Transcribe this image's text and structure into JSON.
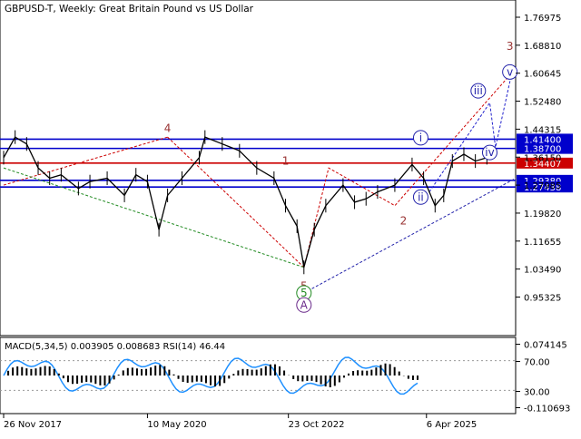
{
  "header": {
    "title": "GBPUSD-T, Weekly:  Great Britain Pound vs US Dollar"
  },
  "chart_data": [
    {
      "type": "line",
      "title": "GBPUSD-T, Weekly:  Great Britain Pound vs US Dollar",
      "ylim": [
        0.9,
        1.82
      ],
      "grid": false,
      "price_ticks": [
        "1.76975",
        "1.68810",
        "1.60645",
        "1.52480",
        "1.44315",
        "1.36150",
        "1.27985",
        "1.19820",
        "1.11655",
        "1.03490",
        "0.95325"
      ],
      "date_ticks": [
        "26 Nov 2017",
        "10 May 2020",
        "23 Oct 2022",
        "6 Apr 2025"
      ],
      "levels": [
        {
          "value": 1.414,
          "label": "1.41400",
          "color": "#0000cc"
        },
        {
          "value": 1.387,
          "label": "1.38700",
          "color": "#0000cc"
        },
        {
          "value": 1.34407,
          "label": "1.34407",
          "color": "#cc0000"
        },
        {
          "value": 1.2938,
          "label": "1.29380",
          "color": "#0000cc"
        },
        {
          "value": 1.27438,
          "label": "1.27438",
          "color": "#0000cc"
        }
      ],
      "series": [
        {
          "x": [
            2017.5,
            2017.7,
            2017.9,
            2018.1,
            2018.3,
            2018.5,
            2018.8,
            2019.0,
            2019.3,
            2019.6,
            2019.8,
            2020.0,
            2020.2,
            2020.35,
            2020.6,
            2020.9,
            2021.0,
            2021.3,
            2021.6,
            2021.9,
            2022.2,
            2022.4,
            2022.6,
            2022.72,
            2022.9,
            2023.1,
            2023.4,
            2023.6,
            2023.8,
            2024.0,
            2024.3,
            2024.6,
            2024.8,
            2025.0,
            2025.15,
            2025.3,
            2025.5,
            2025.7,
            2025.9
          ],
          "values": [
            1.36,
            1.42,
            1.4,
            1.33,
            1.3,
            1.31,
            1.27,
            1.29,
            1.3,
            1.25,
            1.31,
            1.29,
            1.15,
            1.25,
            1.3,
            1.36,
            1.42,
            1.4,
            1.38,
            1.33,
            1.3,
            1.22,
            1.16,
            1.04,
            1.15,
            1.22,
            1.28,
            1.23,
            1.24,
            1.26,
            1.28,
            1.34,
            1.3,
            1.22,
            1.25,
            1.35,
            1.37,
            1.35,
            1.36
          ]
        }
      ],
      "wave_labels": [
        "4",
        "1",
        "2",
        "5",
        "3",
        "i",
        "ii",
        "iii",
        "iv",
        "v",
        "5",
        "A"
      ]
    },
    {
      "type": "line",
      "title": "",
      "legend": "MACD(5,34,5) 0.003905 0.008683 RSI(14) 46.44",
      "ylim": [
        -0.110693,
        0.074145
      ],
      "price_ticks": [
        "0.074145",
        "70.00",
        "30.00",
        "-0.110693"
      ],
      "rsi_levels": [
        70,
        30
      ]
    }
  ]
}
